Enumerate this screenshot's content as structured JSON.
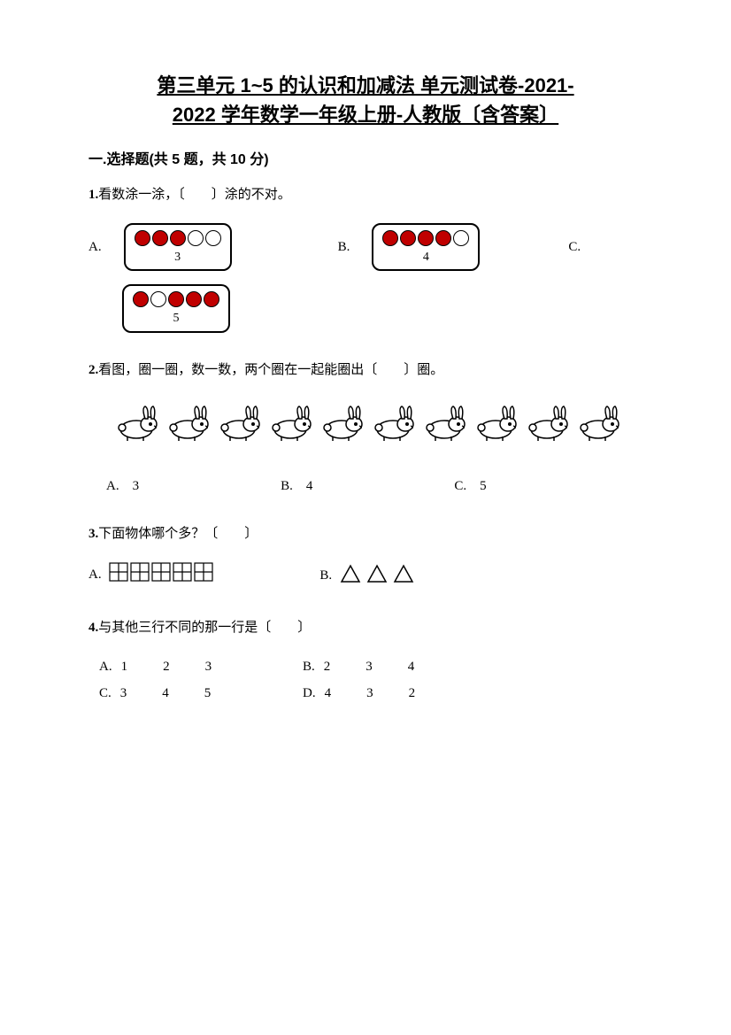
{
  "title_line1": "第三单元 1~5 的认识和加减法 单元测试卷-2021-",
  "title_line2": "2022 学年数学一年级上册-人教版〔含答案〕",
  "section1": "一.选择题(共 5 题，共 10 分)",
  "q1": {
    "num": "1.",
    "text": "看数涂一涂，〔　　〕涂的不对。",
    "opts": {
      "A": {
        "label": "A.",
        "circles": [
          "f",
          "f",
          "f",
          "e",
          "e"
        ],
        "num": "3"
      },
      "B": {
        "label": "B.",
        "circles": [
          "f",
          "f",
          "f",
          "f",
          "e"
        ],
        "num": "4"
      },
      "C": {
        "label": "C.",
        "circles": [
          "f",
          "e",
          "f",
          "f",
          "f"
        ],
        "num": "5"
      }
    }
  },
  "q2": {
    "num": "2.",
    "text": "看图，圈一圈，数一数，两个圈在一起能圈出〔　　〕圈。",
    "rabbit_count": 10,
    "opts": {
      "A": "A.　3",
      "B": "B.　4",
      "C": "C.　5"
    }
  },
  "q3": {
    "num": "3.",
    "text": "下面物体哪个多？〔　　〕",
    "A": {
      "label": "A.",
      "grid_count": 5
    },
    "B": {
      "label": "B.",
      "tri_count": 3
    }
  },
  "q4": {
    "num": "4.",
    "text": "与其他三行不同的那一行是〔　　〕",
    "rows": {
      "A": {
        "label": "A.",
        "vals": [
          "1",
          "2",
          "3"
        ]
      },
      "B": {
        "label": "B.",
        "vals": [
          "2",
          "3",
          "4"
        ]
      },
      "C": {
        "label": "C.",
        "vals": [
          "3",
          "4",
          "5"
        ]
      },
      "D": {
        "label": "D.",
        "vals": [
          "4",
          "3",
          "2"
        ]
      }
    }
  },
  "colors": {
    "filled": "#c00000",
    "stroke": "#000000",
    "bg": "#ffffff"
  }
}
